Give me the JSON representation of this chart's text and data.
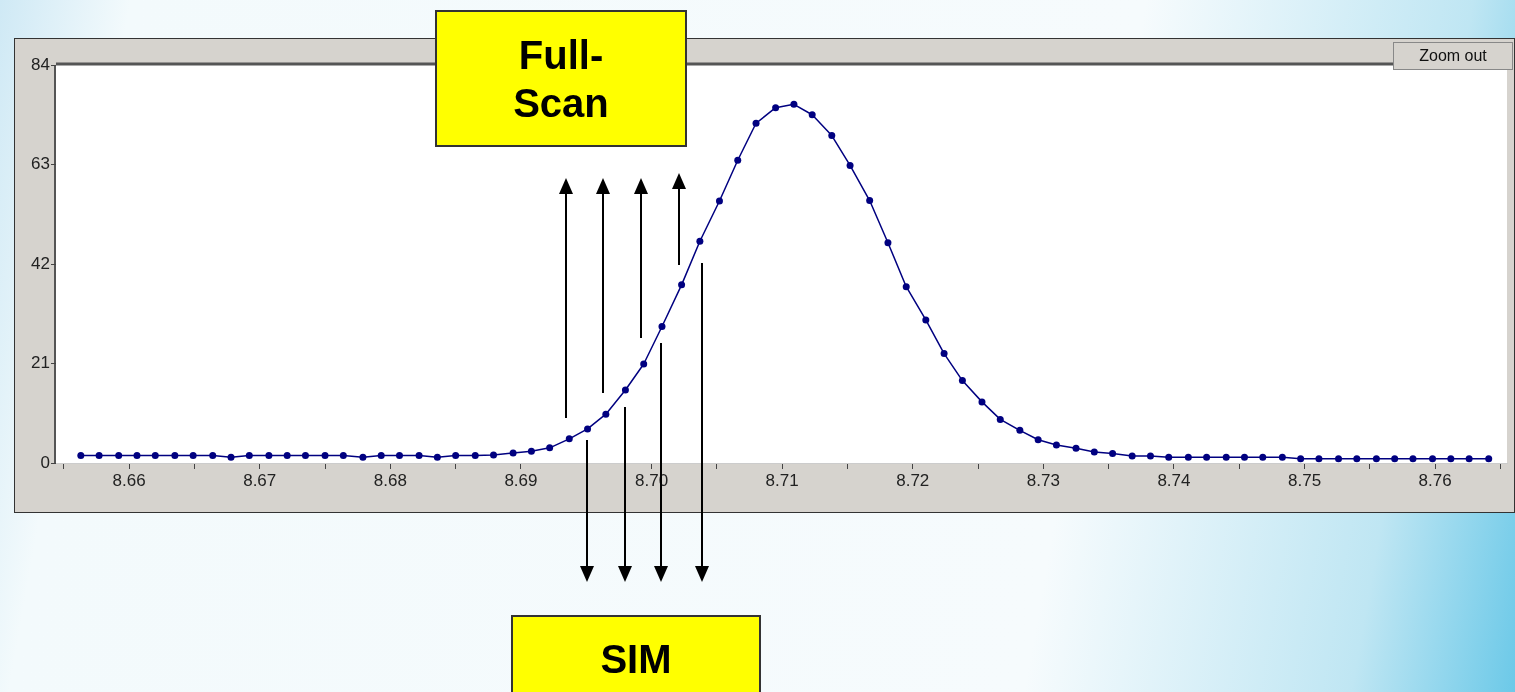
{
  "chart_data": {
    "type": "line",
    "x": [
      8.6563,
      8.6577,
      8.6592,
      8.6606,
      8.662,
      8.6635,
      8.6649,
      8.6664,
      8.6678,
      8.6692,
      8.6707,
      8.6721,
      8.6735,
      8.675,
      8.6764,
      8.6779,
      8.6793,
      8.6807,
      8.6822,
      8.6836,
      8.685,
      8.6865,
      8.6879,
      8.6894,
      8.6908,
      8.6922,
      8.6937,
      8.6951,
      8.6965,
      8.698,
      8.6994,
      8.7008,
      8.7023,
      8.7037,
      8.7052,
      8.7066,
      8.708,
      8.7095,
      8.7109,
      8.7123,
      8.7138,
      8.7152,
      8.7167,
      8.7181,
      8.7195,
      8.721,
      8.7224,
      8.7238,
      8.7253,
      8.7267,
      8.7282,
      8.7296,
      8.731,
      8.7325,
      8.7339,
      8.7353,
      8.7368,
      8.7382,
      8.7396,
      8.7411,
      8.7425,
      8.744,
      8.7454,
      8.7468,
      8.7483,
      8.7497,
      8.7511,
      8.7526,
      8.754,
      8.7555,
      8.7569,
      8.7583,
      8.7598,
      8.7612,
      8.7626,
      8.7641
    ],
    "series": [
      {
        "color": "#000080",
        "values": [
          1.6,
          1.6,
          1.6,
          1.6,
          1.6,
          1.6,
          1.6,
          1.6,
          1.2,
          1.6,
          1.6,
          1.6,
          1.6,
          1.6,
          1.6,
          1.2,
          1.6,
          1.6,
          1.6,
          1.2,
          1.6,
          1.6,
          1.7,
          2.1,
          2.5,
          3.2,
          5.1,
          7.2,
          10.3,
          15.4,
          20.9,
          28.8,
          37.6,
          46.8,
          55.3,
          63.9,
          71.7,
          75.0,
          75.7,
          73.5,
          69.1,
          62.8,
          55.4,
          46.5,
          37.2,
          30.2,
          23.1,
          17.4,
          12.9,
          9.2,
          6.9,
          4.9,
          3.8,
          3.1,
          2.3,
          2.0,
          1.5,
          1.5,
          1.2,
          1.2,
          1.2,
          1.2,
          1.2,
          1.2,
          1.2,
          0.9,
          0.9,
          0.9,
          0.9,
          0.9,
          0.9,
          0.9,
          0.9,
          0.9,
          0.9,
          0.9
        ]
      }
    ],
    "xlim": [
      8.6544,
      8.7655
    ],
    "xticks": [
      {
        "value": 8.655,
        "label": null
      },
      8.66,
      {
        "value": 8.665,
        "label": null
      },
      8.67,
      {
        "value": 8.675,
        "label": null
      },
      8.68,
      {
        "value": 8.685,
        "label": null
      },
      8.69,
      {
        "value": 8.695,
        "label": null
      },
      {
        "value": 8.7,
        "label": "8.70"
      },
      {
        "value": 8.705,
        "label": null
      },
      8.71,
      {
        "value": 8.715,
        "label": null
      },
      8.72,
      {
        "value": 8.725,
        "label": null
      },
      8.73,
      {
        "value": 8.735,
        "label": null
      },
      8.74,
      {
        "value": 8.745,
        "label": null
      },
      8.75,
      {
        "value": 8.755,
        "label": null
      },
      8.76,
      {
        "value": 8.765,
        "label": null
      }
    ],
    "ylim": [
      0,
      84
    ],
    "yticks": [
      0,
      21,
      42,
      63,
      84
    ],
    "grid": false,
    "legend": false,
    "marker": "circle",
    "line_style": "solid",
    "annotations": [
      "Full-Scan",
      "SIM",
      "Zoom out"
    ]
  }
}
